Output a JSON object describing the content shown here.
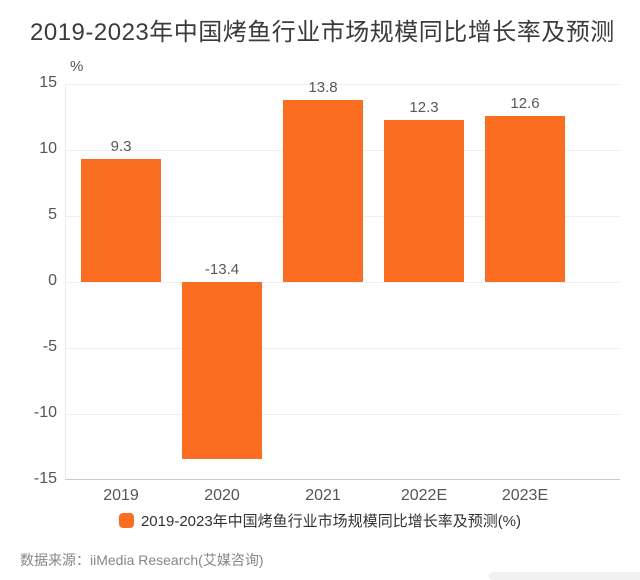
{
  "title": "2019-2023年中国烤鱼行业市场规模同比增长率及预测",
  "chart_data": {
    "type": "bar",
    "title": "2019-2023年中国烤鱼行业市场规模同比增长率及预测",
    "categories": [
      "2019",
      "2020",
      "2021",
      "2022E",
      "2023E"
    ],
    "values": [
      9.3,
      -13.4,
      13.8,
      12.3,
      12.6
    ],
    "value_labels": [
      "9.3",
      "-13.4",
      "13.8",
      "12.3",
      "12.6"
    ],
    "series_name": "2019-2023年中国烤鱼行业市场规模同比增长率及预测(%)",
    "xlabel": "",
    "ylabel": "%",
    "ylim": [
      -15,
      15
    ],
    "yticks": [
      15,
      10,
      5,
      0,
      -5,
      -10,
      -15
    ],
    "grid": true,
    "legend_position": "bottom",
    "bar_color": "#FB6D20"
  },
  "legend": {
    "label": "2019-2023年中国烤鱼行业市场规模同比增长率及预测(%)"
  },
  "source": {
    "label": "数据来源：iiMedia Research(艾媒咨询)"
  },
  "colors": {
    "bar": "#FB6D20",
    "title_text": "#3b3b3b",
    "axis_text": "#555555",
    "gridline": "#efefef",
    "corner_strip": "#f0f0f0"
  }
}
